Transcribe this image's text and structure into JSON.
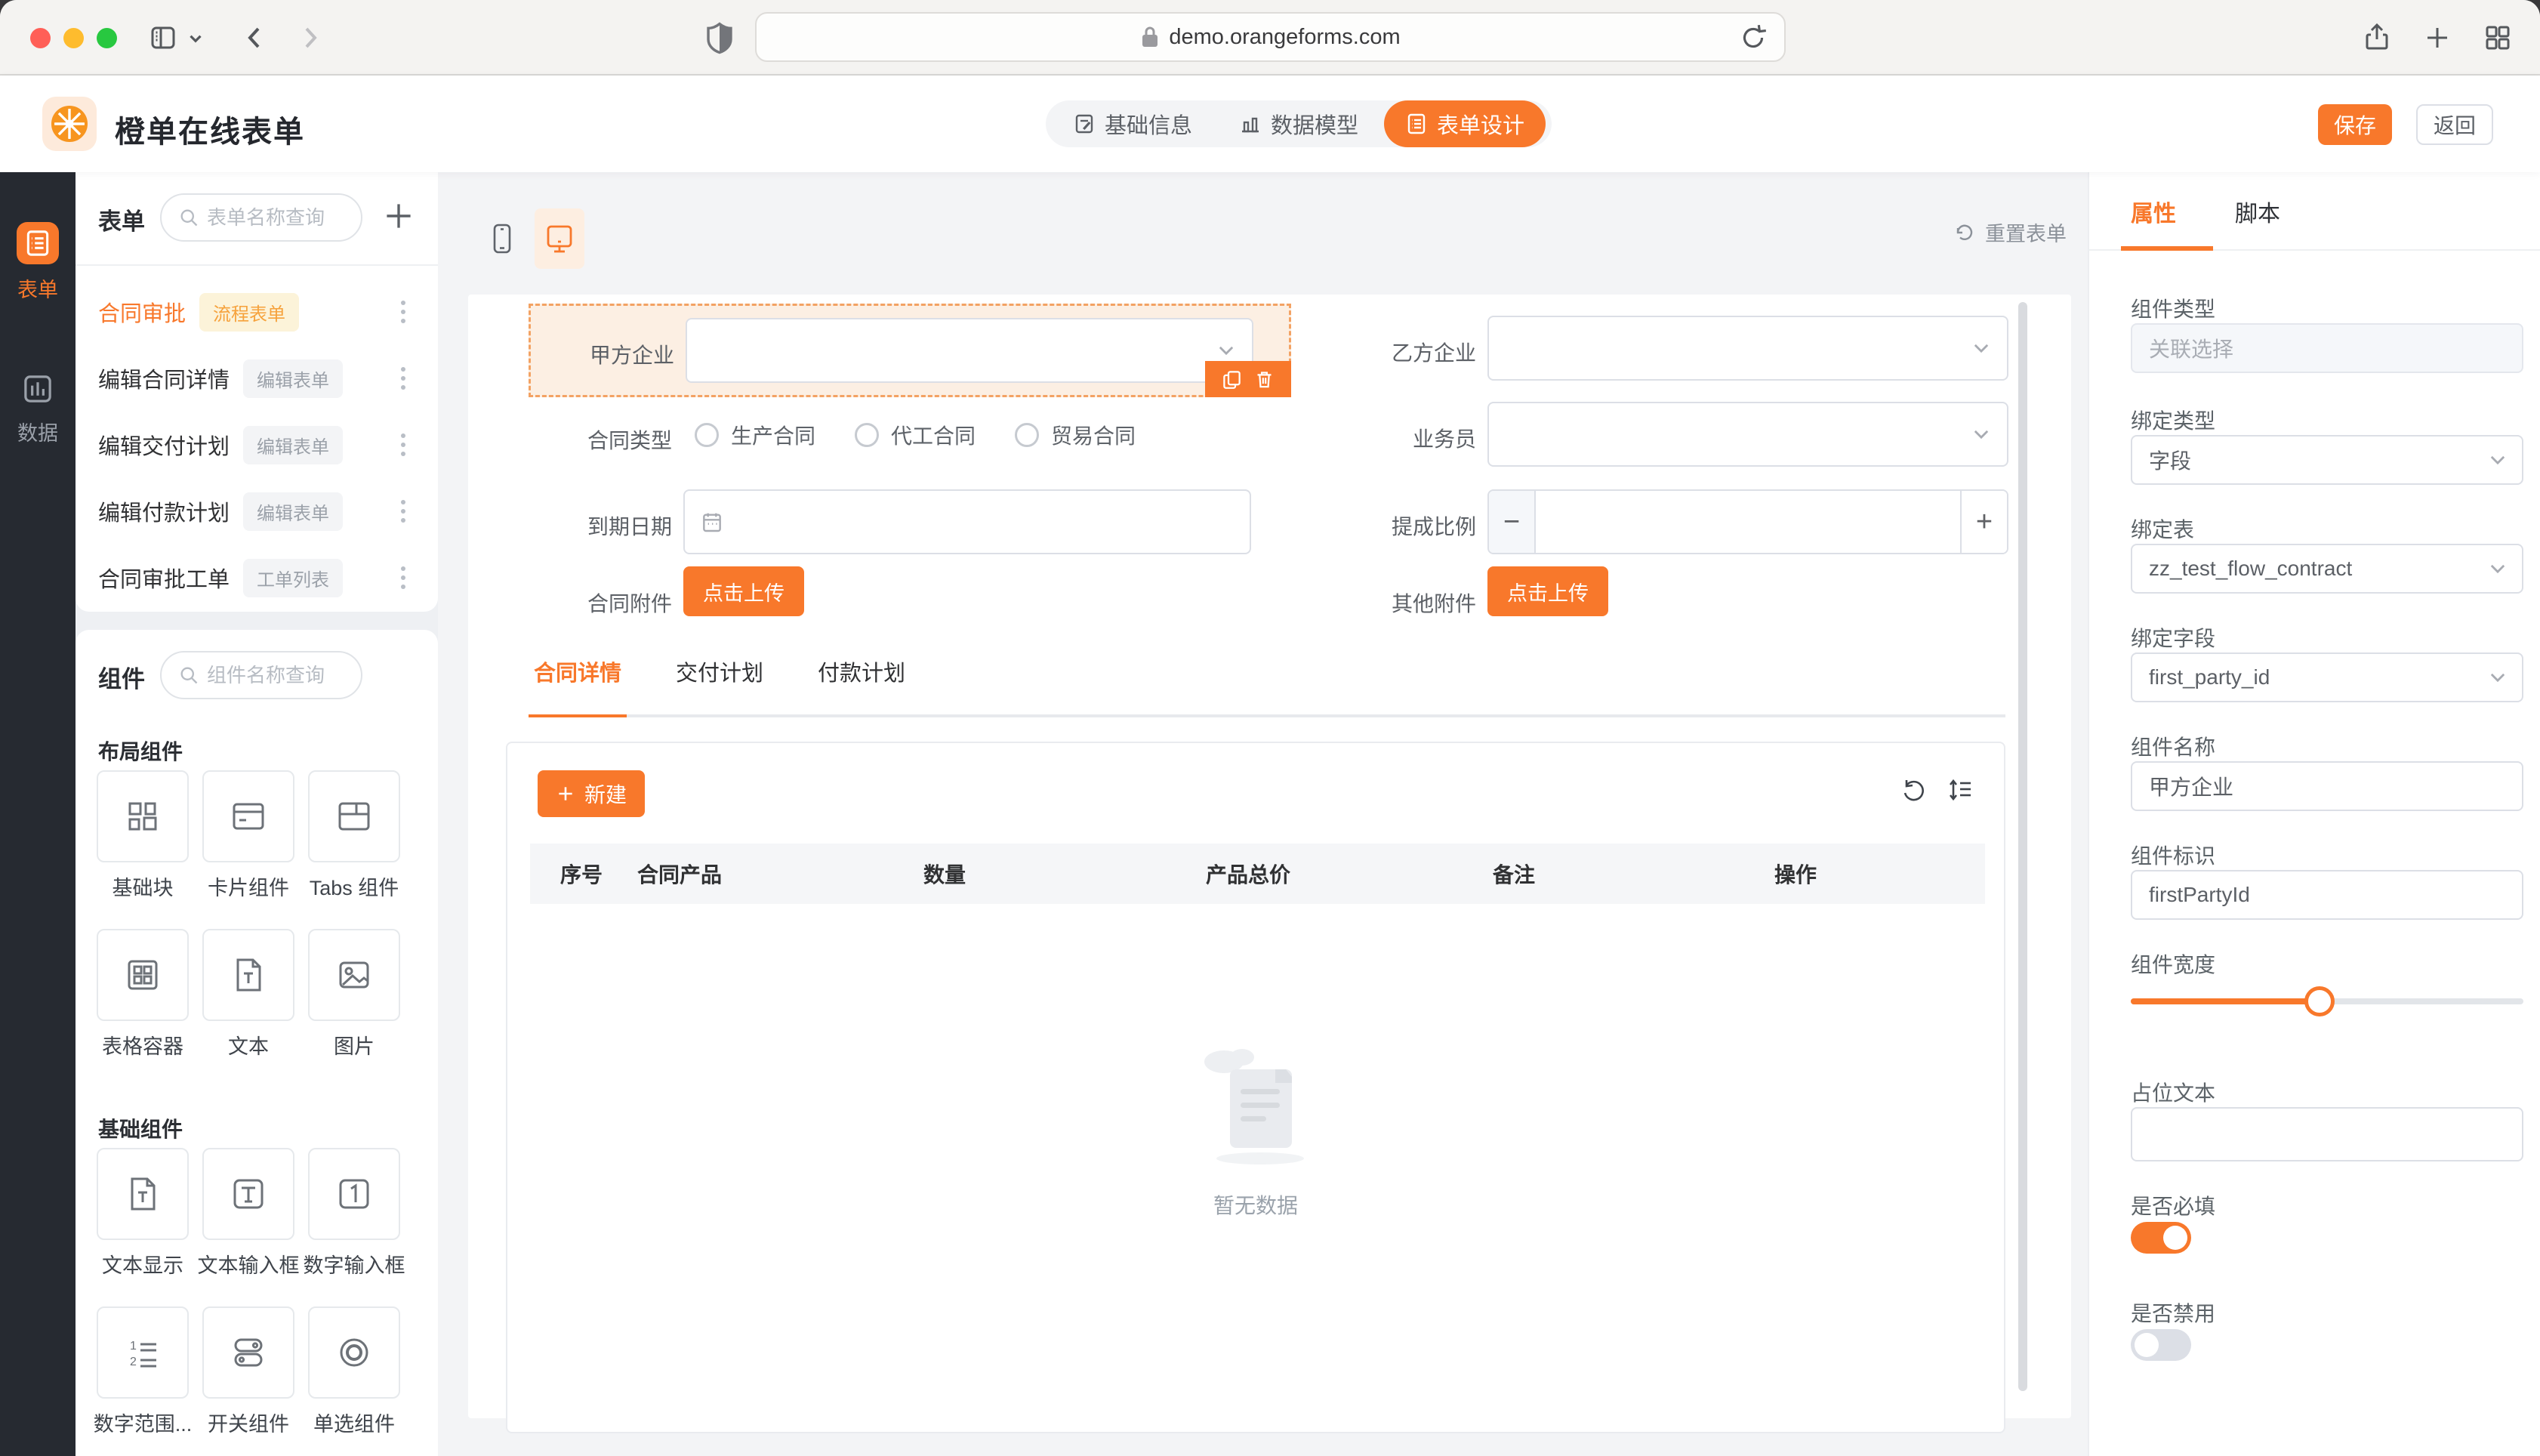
{
  "browser": {
    "url": "demo.orangeforms.com"
  },
  "header": {
    "app_title": "橙单在线表单",
    "nav": [
      {
        "label": "基础信息"
      },
      {
        "label": "数据模型"
      },
      {
        "label": "表单设计"
      }
    ],
    "save_label": "保存",
    "back_label": "返回"
  },
  "rail": {
    "items": [
      {
        "label": "表单"
      },
      {
        "label": "数据"
      }
    ]
  },
  "forms_panel": {
    "title": "表单",
    "search_placeholder": "表单名称查询",
    "items": [
      {
        "name": "合同审批",
        "badge": "流程表单"
      },
      {
        "name": "编辑合同详情",
        "badge": "编辑表单"
      },
      {
        "name": "编辑交付计划",
        "badge": "编辑表单"
      },
      {
        "name": "编辑付款计划",
        "badge": "编辑表单"
      },
      {
        "name": "合同审批工单",
        "badge": "工单列表"
      }
    ]
  },
  "components_panel": {
    "title": "组件",
    "search_placeholder": "组件名称查询",
    "groups": [
      {
        "title": "布局组件",
        "items": [
          {
            "label": "基础块"
          },
          {
            "label": "卡片组件"
          },
          {
            "label": "Tabs 组件"
          },
          {
            "label": "表格容器"
          },
          {
            "label": "文本"
          },
          {
            "label": "图片"
          }
        ]
      },
      {
        "title": "基础组件",
        "items": [
          {
            "label": "文本显示"
          },
          {
            "label": "文本输入框"
          },
          {
            "label": "数字输入框"
          },
          {
            "label": "数字范围..."
          },
          {
            "label": "开关组件"
          },
          {
            "label": "单选组件"
          }
        ]
      }
    ]
  },
  "canvas": {
    "reset_label": "重置表单",
    "fields": {
      "first_party_label": "甲方企业",
      "second_party_label": "乙方企业",
      "contract_type_label": "合同类型",
      "contract_type_options": [
        "生产合同",
        "代工合同",
        "贸易合同"
      ],
      "salesman_label": "业务员",
      "due_date_label": "到期日期",
      "commission_label": "提成比例",
      "contract_attachment_label": "合同附件",
      "other_attachment_label": "其他附件",
      "upload_label": "点击上传",
      "minus_glyph": "−",
      "plus_glyph": "+"
    },
    "detail_tabs": [
      {
        "label": "合同详情"
      },
      {
        "label": "交付计划"
      },
      {
        "label": "付款计划"
      }
    ],
    "new_button_label": "新建",
    "table": {
      "columns": [
        "序号",
        "合同产品",
        "数量",
        "产品总价",
        "备注",
        "操作"
      ]
    },
    "empty_text": "暂无数据"
  },
  "inspector": {
    "tabs": [
      {
        "label": "属性"
      },
      {
        "label": "脚本"
      }
    ],
    "component_type": {
      "label": "组件类型",
      "placeholder": "关联选择"
    },
    "bind_type": {
      "label": "绑定类型",
      "value": "字段"
    },
    "bind_table": {
      "label": "绑定表",
      "value": "zz_test_flow_contract"
    },
    "bind_field": {
      "label": "绑定字段",
      "value": "first_party_id"
    },
    "component_name": {
      "label": "组件名称",
      "value": "甲方企业"
    },
    "component_id": {
      "label": "组件标识",
      "value": "firstPartyId"
    },
    "component_width": {
      "label": "组件宽度",
      "percent": 48
    },
    "placeholder_text": {
      "label": "占位文本",
      "value": ""
    },
    "required": {
      "label": "是否必填",
      "on": true
    },
    "disabled": {
      "label": "是否禁用",
      "on": false
    }
  },
  "colors": {
    "primary": "#f8782b",
    "selected_field_bg": "#fcefe3",
    "selected_field_border": "#f3a263",
    "flow_badge_bg": "#fcf3d9",
    "flow_badge_text": "#f6a23c",
    "rail_bg": "#262a31"
  }
}
